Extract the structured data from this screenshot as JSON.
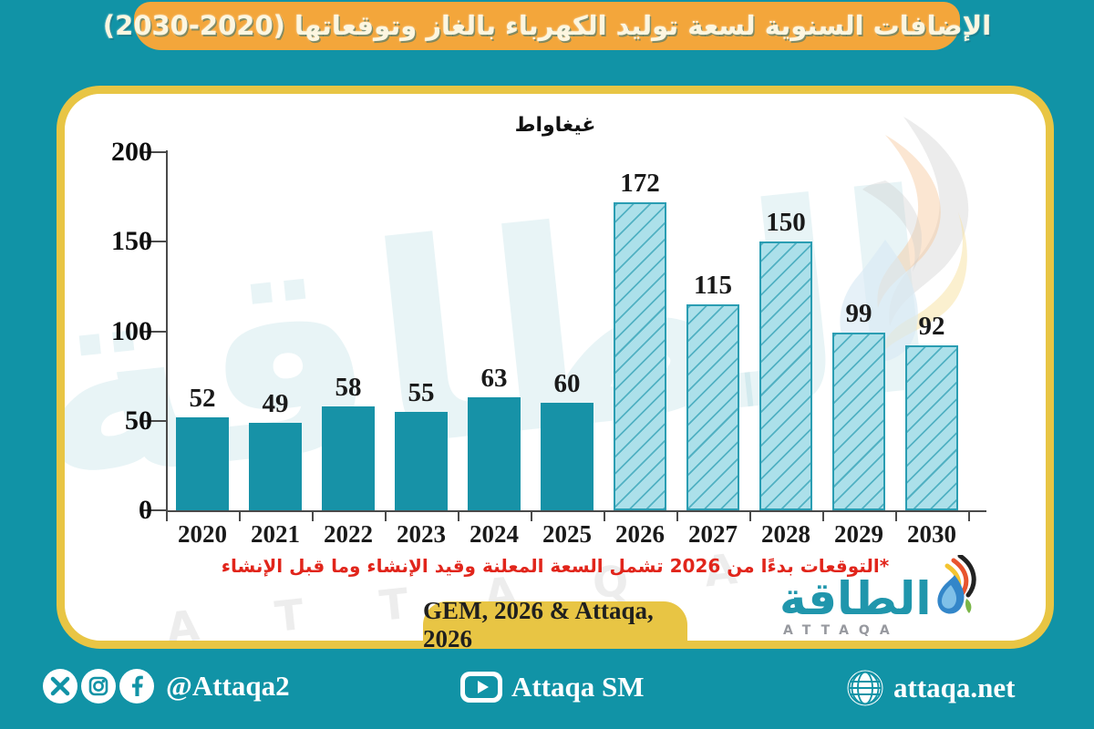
{
  "title": "الإضافات السنوية لسعة توليد الكهرباء بالغاز وتوقعاتها (2020-2030)",
  "chart_data": {
    "type": "bar",
    "title": "الإضافات السنوية لسعة توليد الكهرباء بالغاز وتوقعاتها (2020-2030)",
    "ylabel": "غيغاواط",
    "categories": [
      "2020",
      "2021",
      "2022",
      "2023",
      "2024",
      "2025",
      "2026",
      "2027",
      "2028",
      "2029",
      "2030"
    ],
    "values": [
      52,
      49,
      58,
      55,
      63,
      60,
      172,
      115,
      150,
      99,
      92
    ],
    "ylim": [
      0,
      200
    ],
    "yticks": [
      0,
      50,
      100,
      150,
      200
    ],
    "grid": false,
    "legend": "none",
    "forecast_start_category": "2026",
    "bar_style_solid_years": "2020-2025",
    "bar_style_hatched_years": "2026-2030",
    "annotations": {
      "footnote": "*التوقعات بدءًا من 2026 تشمل السعة المعلنة وقيد الإنشاء وما قبل الإنشاء",
      "source": "GEM, 2026 & Attaqa, 2026"
    }
  },
  "footnote": "*التوقعات بدءًا من 2026 تشمل السعة المعلنة وقيد الإنشاء وما قبل الإنشاء",
  "source_badge": "GEM, 2026 & Attaqa, 2026",
  "logo": {
    "arabic_name": "الطاقة",
    "latin_name": "ATTAQA"
  },
  "watermark": {
    "arabic": "الطاقة",
    "latin": "A T T A Q A"
  },
  "footer": {
    "social_handle": "@Attaqa2",
    "youtube_label": "Attaqa SM",
    "website": "attaqa.net"
  },
  "colors": {
    "background": "#1193a6",
    "banner": "#f3a63b",
    "card_border_gold": "#e8c544",
    "title_text": "#fdf6e0",
    "bar_solid": "#1792a7",
    "bar_forecast_fill": "#ace0ea",
    "bar_forecast_hatch": "#2a9db2",
    "axis": "#4a4a4a",
    "value_text": "#1a1a1a",
    "footnote_red": "#e1251b",
    "logo_teal": "#2096ac"
  }
}
